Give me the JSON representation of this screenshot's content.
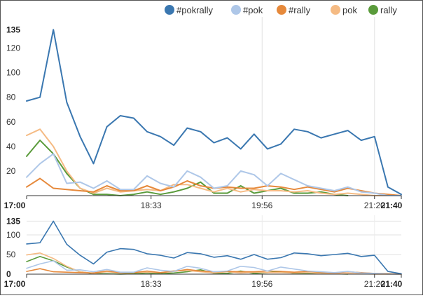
{
  "chart_data": {
    "type": "line",
    "legend_position": "top-right",
    "x_ticks": [
      {
        "label": "17:00",
        "t": 0,
        "bold": true
      },
      {
        "label": "18:33",
        "t": 93,
        "bold": false
      },
      {
        "label": "19:56",
        "t": 176,
        "bold": false
      },
      {
        "label": "21:20",
        "t": 260,
        "bold": false
      },
      {
        "label": "21:40",
        "t": 280,
        "bold": true
      }
    ],
    "main": {
      "yticks": [
        "20",
        "40",
        "60",
        "80",
        "100",
        "120",
        "135"
      ],
      "yvalues": [
        20,
        40,
        60,
        80,
        100,
        120,
        135
      ],
      "ylim": [
        0,
        142
      ],
      "grid": "vertical",
      "grid_t": [
        176,
        260
      ]
    },
    "overview": {
      "yticks": [
        "0",
        "50",
        "100",
        "135"
      ],
      "yvalues": [
        0,
        50,
        100,
        135
      ],
      "ylim": [
        0,
        150
      ],
      "grid": "horizontal",
      "grid_t": [
        176,
        260
      ]
    },
    "x": [
      0,
      10,
      20,
      30,
      40,
      50,
      60,
      70,
      80,
      90,
      100,
      110,
      120,
      130,
      140,
      150,
      160,
      170,
      180,
      190,
      200,
      210,
      220,
      230,
      240,
      250,
      260,
      270,
      280
    ],
    "series": [
      {
        "name": "#pokrally",
        "color": "#3a77b0",
        "values": [
          77,
          80,
          135,
          76,
          48,
          26,
          56,
          65,
          63,
          52,
          48,
          41,
          55,
          52,
          43,
          47,
          38,
          50,
          38,
          42,
          54,
          52,
          47,
          50,
          53,
          45,
          48,
          7,
          1
        ]
      },
      {
        "name": "#pok",
        "color": "#aec7e8",
        "values": [
          15,
          26,
          34,
          10,
          11,
          6,
          12,
          5,
          5,
          16,
          10,
          7,
          20,
          15,
          6,
          8,
          20,
          17,
          8,
          18,
          13,
          8,
          6,
          4,
          7,
          3,
          2,
          0,
          0
        ]
      },
      {
        "name": "#rally",
        "color": "#e6893b",
        "values": [
          7,
          14,
          6,
          5,
          4,
          3,
          8,
          4,
          4,
          8,
          4,
          7,
          12,
          8,
          6,
          7,
          6,
          6,
          8,
          7,
          5,
          7,
          5,
          3,
          6,
          4,
          2,
          1,
          0
        ]
      },
      {
        "name": "pok",
        "color": "#f5bb84",
        "values": [
          49,
          54,
          40,
          20,
          6,
          2,
          6,
          3,
          4,
          5,
          4,
          9,
          9,
          6,
          3,
          6,
          3,
          5,
          4,
          4,
          3,
          4,
          2,
          1,
          2,
          1,
          0,
          0,
          0
        ]
      },
      {
        "name": "rally",
        "color": "#5a9b3b",
        "values": [
          32,
          45,
          34,
          18,
          6,
          1,
          1,
          0,
          1,
          3,
          1,
          3,
          6,
          11,
          2,
          2,
          8,
          2,
          4,
          6,
          2,
          2,
          3,
          1,
          0,
          null,
          null,
          null,
          null
        ]
      }
    ]
  }
}
